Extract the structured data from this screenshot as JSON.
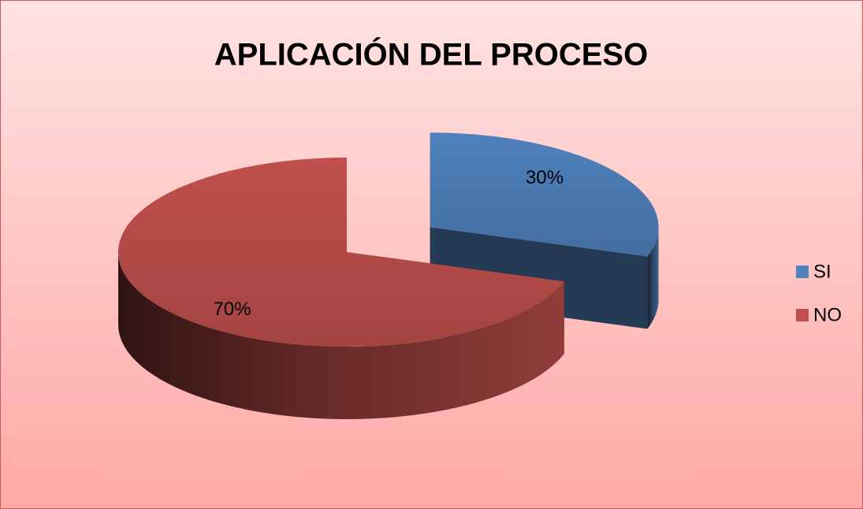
{
  "chart_data": {
    "type": "pie",
    "title": "APLICACIÓN DEL PROCESO",
    "categories": [
      "SI",
      "NO"
    ],
    "values": [
      30,
      70
    ],
    "value_labels": [
      "30%",
      "70%"
    ],
    "colors": [
      "#4f81bd",
      "#c0504d"
    ],
    "legend": "right"
  }
}
